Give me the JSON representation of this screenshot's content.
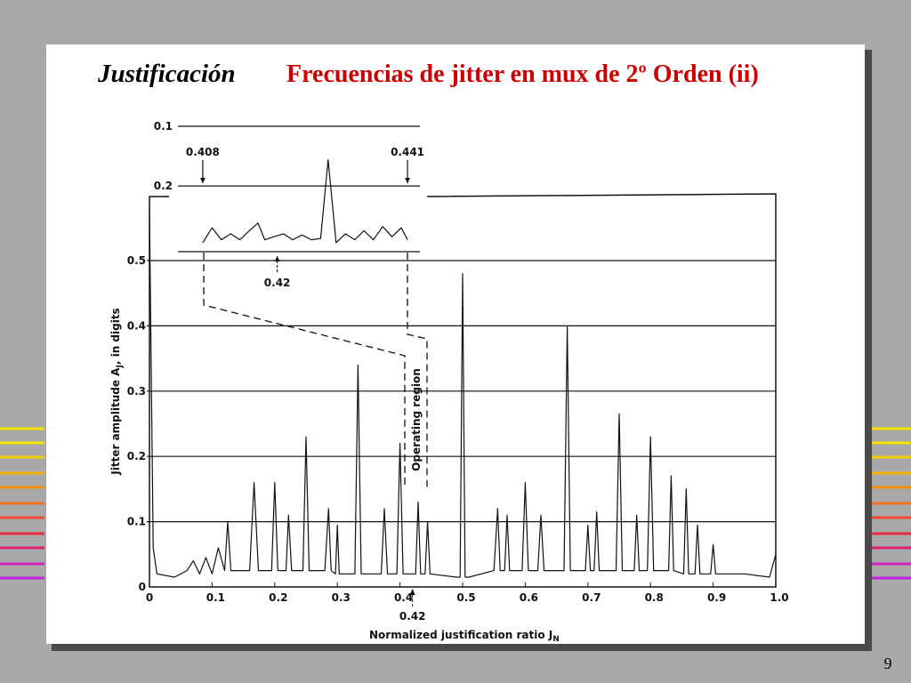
{
  "slide": {
    "title_left": "Justificación",
    "title_right": "Frecuencias de jitter en mux de 2º Orden (ii)",
    "page_number": 9
  },
  "chart_data": [
    {
      "type": "line",
      "color": "#111111",
      "ylabel": "Jitter amplitude A",
      "ylabel_sub": "J",
      "ylabel_end": ", in digits",
      "xlabel": "Normalized justification ratio J",
      "xlabel_sub": "N",
      "annotation": "Operating region",
      "marker_x": 0.42,
      "xlim": [
        0,
        1
      ],
      "ylim": [
        0,
        0.6
      ],
      "xticks": [
        0,
        0.1,
        0.2,
        0.3,
        0.4,
        0.5,
        0.6,
        0.7,
        0.8,
        0.9,
        {
          "value": 1,
          "label": "1.0"
        }
      ],
      "yticks": [
        0,
        0.1,
        0.2,
        0.3,
        0.4,
        0.5
      ],
      "grid": true,
      "x": [
        0,
        0.006,
        0.012,
        0.04,
        0.06,
        0.07,
        0.08,
        0.09,
        0.1,
        0.11,
        0.12,
        0.125,
        0.13,
        0.16,
        0.167,
        0.174,
        0.195,
        0.2,
        0.205,
        0.218,
        0.222,
        0.227,
        0.245,
        0.25,
        0.255,
        0.28,
        0.286,
        0.29,
        0.297,
        0.3,
        0.303,
        0.328,
        0.333,
        0.338,
        0.37,
        0.375,
        0.38,
        0.395,
        0.4,
        0.405,
        0.425,
        0.429,
        0.433,
        0.44,
        0.444,
        0.448,
        0.49,
        0.496,
        0.5,
        0.504,
        0.51,
        0.55,
        0.556,
        0.56,
        0.567,
        0.571,
        0.575,
        0.595,
        0.6,
        0.605,
        0.62,
        0.625,
        0.63,
        0.662,
        0.667,
        0.672,
        0.696,
        0.7,
        0.704,
        0.71,
        0.714,
        0.718,
        0.745,
        0.75,
        0.755,
        0.774,
        0.778,
        0.782,
        0.795,
        0.8,
        0.805,
        0.829,
        0.833,
        0.837,
        0.853,
        0.857,
        0.861,
        0.871,
        0.875,
        0.879,
        0.896,
        0.9,
        0.904,
        0.95,
        0.99,
        1.0
      ],
      "values": [
        0.58,
        0.06,
        0.02,
        0.015,
        0.025,
        0.04,
        0.02,
        0.045,
        0.02,
        0.06,
        0.025,
        0.1,
        0.025,
        0.025,
        0.16,
        0.025,
        0.025,
        0.16,
        0.025,
        0.025,
        0.11,
        0.025,
        0.025,
        0.23,
        0.025,
        0.025,
        0.12,
        0.025,
        0.02,
        0.095,
        0.02,
        0.02,
        0.34,
        0.02,
        0.02,
        0.12,
        0.02,
        0.02,
        0.22,
        0.02,
        0.02,
        0.13,
        0.02,
        0.02,
        0.1,
        0.02,
        0.015,
        0.015,
        0.48,
        0.015,
        0.015,
        0.025,
        0.12,
        0.025,
        0.025,
        0.11,
        0.025,
        0.025,
        0.16,
        0.025,
        0.025,
        0.11,
        0.025,
        0.025,
        0.4,
        0.025,
        0.025,
        0.095,
        0.025,
        0.025,
        0.115,
        0.025,
        0.025,
        0.265,
        0.025,
        0.025,
        0.11,
        0.025,
        0.025,
        0.23,
        0.025,
        0.025,
        0.17,
        0.025,
        0.02,
        0.15,
        0.02,
        0.02,
        0.095,
        0.02,
        0.02,
        0.065,
        0.02,
        0.02,
        0.015,
        0.05
      ]
    },
    {
      "type": "line",
      "color": "#111111",
      "xlim": [
        0.404,
        0.443
      ],
      "ylim": [
        0.31,
        0.1
      ],
      "xticks": [
        0.408,
        0.42,
        0.441
      ],
      "yticks": [
        0.1,
        0.2
      ],
      "x": [
        0.408,
        0.4095,
        0.411,
        0.4125,
        0.414,
        0.4155,
        0.4169,
        0.418,
        0.4195,
        0.421,
        0.4225,
        0.424,
        0.4255,
        0.427,
        0.4282,
        0.4295,
        0.431,
        0.4325,
        0.434,
        0.4355,
        0.437,
        0.4385,
        0.44,
        0.441
      ],
      "values": [
        0.295,
        0.27,
        0.29,
        0.28,
        0.29,
        0.275,
        0.262,
        0.29,
        0.285,
        0.28,
        0.29,
        0.282,
        0.29,
        0.288,
        0.156,
        0.295,
        0.28,
        0.29,
        0.275,
        0.29,
        0.268,
        0.285,
        0.27,
        0.29
      ]
    }
  ]
}
